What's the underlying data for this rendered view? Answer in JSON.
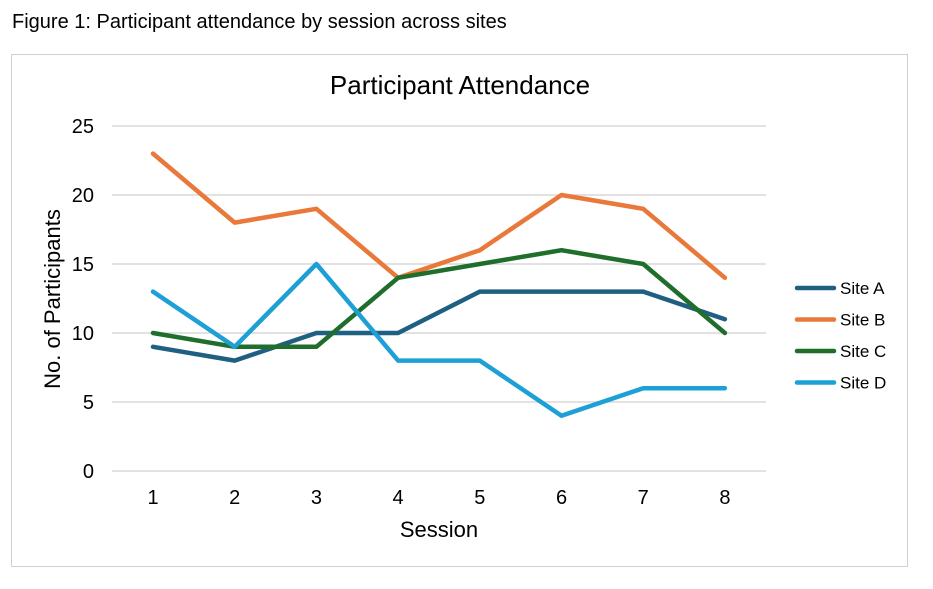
{
  "caption": "Figure 1: Participant attendance by session across sites",
  "chart_data": {
    "type": "line",
    "title": "Participant Attendance",
    "xlabel": "Session",
    "ylabel": "No. of Participants",
    "categories": [
      "1",
      "2",
      "3",
      "4",
      "5",
      "6",
      "7",
      "8"
    ],
    "ylim": [
      0,
      25
    ],
    "yticks": [
      "0",
      "5",
      "10",
      "15",
      "20",
      "25"
    ],
    "grid": "horizontal",
    "legend_position": "right",
    "series": [
      {
        "name": "Site A",
        "color": "#1f5f82",
        "values": [
          9,
          8,
          10,
          10,
          13,
          13,
          13,
          11
        ]
      },
      {
        "name": "Site B",
        "color": "#e8793a",
        "values": [
          23,
          18,
          19,
          14,
          16,
          20,
          19,
          14
        ]
      },
      {
        "name": "Site C",
        "color": "#1f6e2b",
        "values": [
          10,
          9,
          9,
          14,
          15,
          16,
          15,
          10
        ]
      },
      {
        "name": "Site D",
        "color": "#1da0d6",
        "values": [
          13,
          9,
          15,
          8,
          8,
          4,
          6,
          6
        ]
      }
    ]
  }
}
